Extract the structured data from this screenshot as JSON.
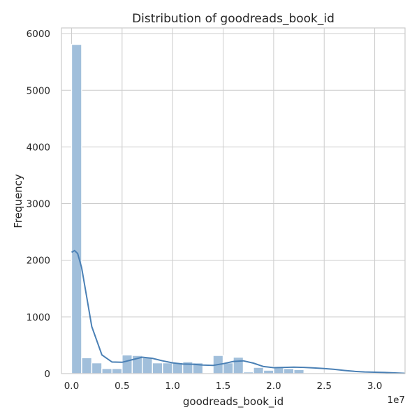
{
  "chart_data": {
    "type": "bar",
    "subtype": "histogram",
    "title": "Distribution of goodreads_book_id",
    "xlabel": "goodreads_book_id",
    "ylabel": "Frequency",
    "x_offset_label": "1e7",
    "xlim": [
      -0.1,
      3.3
    ],
    "ylim": [
      0,
      6100
    ],
    "x_ticks": [
      0.0,
      0.5,
      1.0,
      1.5,
      2.0,
      2.5,
      3.0
    ],
    "x_tick_labels": [
      "0.0",
      "0.5",
      "1.0",
      "1.5",
      "2.0",
      "2.5",
      "3.0"
    ],
    "y_ticks": [
      0,
      1000,
      2000,
      3000,
      4000,
      5000,
      6000
    ],
    "y_tick_labels": [
      "0",
      "1000",
      "2000",
      "3000",
      "4000",
      "5000",
      "6000"
    ],
    "grid": true,
    "bin_edges": [
      0.0,
      0.1,
      0.2,
      0.3,
      0.4,
      0.5,
      0.6,
      0.7,
      0.8,
      0.9,
      1.0,
      1.1,
      1.2,
      1.3,
      1.4,
      1.5,
      1.6,
      1.7,
      1.8,
      1.9,
      2.0,
      2.1,
      2.2,
      2.3,
      2.4,
      2.5,
      2.6,
      2.7,
      2.8,
      2.9,
      3.0,
      3.1,
      3.2,
      3.3
    ],
    "values": [
      5810,
      280,
      190,
      90,
      90,
      330,
      320,
      280,
      190,
      190,
      190,
      210,
      190,
      0,
      320,
      190,
      290,
      30,
      110,
      60,
      120,
      90,
      70,
      10,
      5,
      5,
      5,
      3,
      3,
      2,
      2,
      1,
      1
    ],
    "kde": {
      "x": [
        0.0,
        0.03,
        0.06,
        0.1,
        0.15,
        0.2,
        0.3,
        0.4,
        0.5,
        0.6,
        0.7,
        0.8,
        0.9,
        1.0,
        1.1,
        1.2,
        1.3,
        1.4,
        1.5,
        1.6,
        1.7,
        1.8,
        1.9,
        2.0,
        2.1,
        2.2,
        2.3,
        2.4,
        2.5,
        2.6,
        2.7,
        2.8,
        2.9,
        3.0,
        3.1,
        3.2,
        3.3
      ],
      "y": [
        2140,
        2170,
        2120,
        1870,
        1350,
        830,
        330,
        205,
        200,
        245,
        290,
        270,
        225,
        190,
        170,
        165,
        150,
        145,
        175,
        215,
        225,
        185,
        125,
        105,
        110,
        115,
        110,
        100,
        90,
        75,
        55,
        40,
        30,
        25,
        20,
        12,
        5
      ]
    },
    "colors": {
      "bar": "#a1bfdb",
      "kde": "#4a80b5",
      "grid": "#cccccc"
    }
  }
}
